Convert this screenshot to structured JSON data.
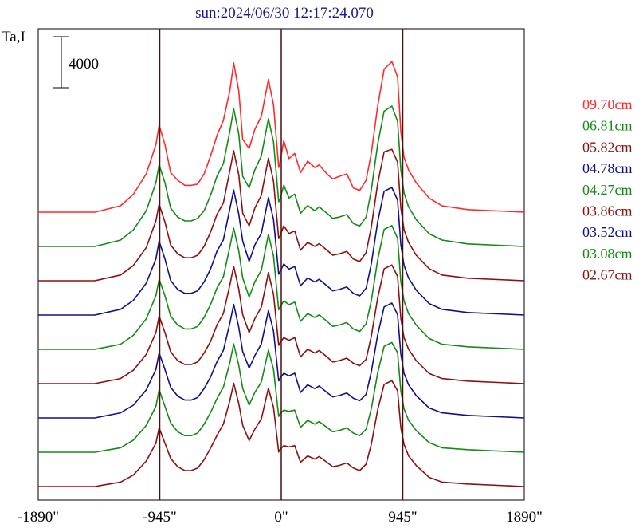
{
  "chart_data": {
    "type": "line",
    "title": "sun:2024/06/30 12:17:24.070",
    "ylabel": "Ta,I",
    "scale_bar_label": "4000",
    "xlim": [
      -1890,
      1890
    ],
    "x_ticks": [
      {
        "value": -1890,
        "label": "-1890\""
      },
      {
        "value": -945,
        "label": "-945\""
      },
      {
        "value": 0,
        "label": "0\""
      },
      {
        "value": 945,
        "label": "945\""
      },
      {
        "value": 1890,
        "label": "1890\""
      }
    ],
    "vertical_markers": [
      -945,
      0,
      945
    ],
    "line_color": "#4a0f0f",
    "frame_color": "#000000",
    "series_profile_x": [
      -1890,
      -1450,
      -1250,
      -1150,
      -1050,
      -975,
      -950,
      -905,
      -860,
      -805,
      -750,
      -700,
      -650,
      -600,
      -550,
      -500,
      -450,
      -400,
      -370,
      -330,
      -300,
      -250,
      -205,
      -155,
      -100,
      -60,
      -20,
      -10,
      20,
      60,
      105,
      150,
      205,
      260,
      295,
      355,
      400,
      450,
      510,
      560,
      610,
      660,
      700,
      750,
      800,
      860,
      905,
      930,
      955,
      990,
      1050,
      1150,
      1250,
      1450,
      1890
    ],
    "series_profile_units": "Ta,I",
    "series": [
      {
        "name": "09.70cm",
        "color": "#ff2a2a",
        "offset": 0,
        "values": [
          0,
          0,
          500,
          1400,
          3000,
          5300,
          6800,
          5300,
          3100,
          2500,
          2100,
          2100,
          2200,
          3000,
          4400,
          6000,
          7200,
          9500,
          11700,
          9500,
          5700,
          5000,
          6500,
          7500,
          10400,
          8400,
          3500,
          3900,
          5600,
          4200,
          4600,
          3100,
          4000,
          3500,
          3700,
          3000,
          2600,
          2800,
          3000,
          1900,
          1700,
          2500,
          4600,
          8300,
          11200,
          11800,
          10600,
          6300,
          4300,
          3300,
          2300,
          1100,
          500,
          200,
          0
        ]
      },
      {
        "name": "06.81cm",
        "color": "#158a15",
        "offset": 0,
        "values": [
          0,
          0,
          500,
          1300,
          2800,
          5000,
          6400,
          5000,
          3000,
          2300,
          2000,
          2000,
          2200,
          2800,
          4000,
          5500,
          6500,
          9000,
          10800,
          8800,
          5500,
          4600,
          6000,
          7100,
          10000,
          8200,
          3500,
          3700,
          4800,
          3800,
          4100,
          2600,
          3200,
          2800,
          3100,
          2600,
          2200,
          2300,
          2500,
          1800,
          1600,
          2300,
          4400,
          8000,
          10600,
          11000,
          9800,
          6000,
          4200,
          3100,
          2100,
          1000,
          500,
          200,
          0
        ]
      },
      {
        "name": "05.82cm",
        "color": "#8b1010",
        "offset": 0,
        "values": [
          0,
          0,
          450,
          1200,
          2600,
          4700,
          6000,
          4600,
          2800,
          2100,
          1800,
          1800,
          2000,
          2700,
          3800,
          5200,
          6100,
          8600,
          10200,
          8300,
          5300,
          4300,
          5700,
          6700,
          9600,
          7800,
          3300,
          3500,
          4300,
          3700,
          3900,
          2400,
          3000,
          2700,
          2900,
          2400,
          2000,
          2100,
          2300,
          1700,
          1500,
          2200,
          4200,
          7600,
          10100,
          10300,
          9300,
          5700,
          4000,
          3000,
          2000,
          950,
          450,
          200,
          0
        ]
      },
      {
        "name": "04.78cm",
        "color": "#10108b",
        "offset": 0,
        "values": [
          0,
          0,
          450,
          1150,
          2500,
          4400,
          5800,
          4400,
          2700,
          2000,
          1700,
          1700,
          1900,
          2600,
          3600,
          5000,
          5900,
          8300,
          9800,
          7900,
          5800,
          4200,
          5500,
          6400,
          9200,
          7500,
          3200,
          3400,
          4000,
          3600,
          3800,
          2300,
          2900,
          2600,
          2800,
          2300,
          1900,
          2000,
          2200,
          1700,
          1500,
          2100,
          4000,
          7300,
          9700,
          10000,
          9000,
          5500,
          3900,
          2900,
          1950,
          900,
          450,
          200,
          0
        ]
      },
      {
        "name": "04.27cm",
        "color": "#158a15",
        "offset": 0,
        "values": [
          0,
          0,
          400,
          1100,
          2400,
          4200,
          5500,
          4200,
          2600,
          1900,
          1600,
          1600,
          1800,
          2500,
          3500,
          4800,
          5700,
          8000,
          9500,
          7700,
          5600,
          4100,
          5300,
          6200,
          9000,
          7300,
          3100,
          3300,
          3800,
          3500,
          3700,
          2200,
          2800,
          2500,
          2700,
          2200,
          1800,
          1900,
          2100,
          1600,
          1400,
          2000,
          3800,
          7000,
          9400,
          9700,
          8700,
          5300,
          3800,
          2800,
          1900,
          850,
          400,
          200,
          0
        ]
      },
      {
        "name": "03.86cm",
        "color": "#8b1010",
        "offset": 0,
        "values": [
          0,
          0,
          400,
          1050,
          2300,
          4000,
          5300,
          4000,
          2500,
          1800,
          1500,
          1500,
          1700,
          2400,
          3300,
          4600,
          5500,
          7700,
          9200,
          7400,
          5400,
          4000,
          5100,
          6000,
          8700,
          7000,
          3000,
          3200,
          3600,
          3400,
          3600,
          2100,
          2700,
          2400,
          2600,
          2100,
          1700,
          1800,
          2000,
          1600,
          1400,
          1900,
          3700,
          6700,
          9000,
          9300,
          8400,
          5100,
          3600,
          2700,
          1800,
          800,
          400,
          200,
          0
        ]
      },
      {
        "name": "03.52cm",
        "color": "#10108b",
        "offset": 0,
        "values": [
          0,
          0,
          400,
          1000,
          2200,
          3800,
          5100,
          3800,
          2400,
          1700,
          1400,
          1400,
          1600,
          2300,
          3200,
          4400,
          5300,
          7400,
          8900,
          7100,
          5200,
          3900,
          4900,
          5800,
          8400,
          6800,
          2900,
          3100,
          3500,
          3300,
          3500,
          2000,
          2600,
          2300,
          2500,
          2000,
          1650,
          1750,
          1950,
          1550,
          1350,
          1850,
          3600,
          6500,
          8700,
          9000,
          8100,
          5000,
          3500,
          2600,
          1750,
          780,
          400,
          200,
          0
        ]
      },
      {
        "name": "03.08cm",
        "color": "#158a15",
        "offset": 0,
        "values": [
          0,
          0,
          350,
          950,
          2100,
          3600,
          4900,
          3600,
          2300,
          1600,
          1300,
          1300,
          1500,
          2200,
          3100,
          4200,
          5100,
          7000,
          8500,
          6800,
          5000,
          3700,
          4700,
          5500,
          8000,
          6500,
          2800,
          3000,
          3300,
          3200,
          3300,
          1950,
          2500,
          2200,
          2400,
          1950,
          1600,
          1700,
          1900,
          1500,
          1300,
          1800,
          3400,
          6200,
          8300,
          8600,
          7800,
          4800,
          3400,
          2500,
          1700,
          750,
          350,
          200,
          0
        ]
      },
      {
        "name": "02.67cm",
        "color": "#8b1010",
        "offset": 0,
        "values": [
          0,
          0,
          350,
          900,
          2000,
          3400,
          4600,
          3400,
          2200,
          1550,
          1250,
          1250,
          1450,
          2100,
          3000,
          4000,
          4900,
          6700,
          8100,
          6500,
          4800,
          3600,
          4500,
          5300,
          7700,
          6200,
          2700,
          2900,
          3200,
          3100,
          3200,
          1900,
          2400,
          2150,
          2350,
          1900,
          1550,
          1650,
          1850,
          1450,
          1250,
          1750,
          3300,
          6000,
          8000,
          8300,
          7500,
          4600,
          3300,
          2400,
          1650,
          720,
          350,
          200,
          0
        ]
      }
    ],
    "grid": false,
    "legend": "right"
  }
}
